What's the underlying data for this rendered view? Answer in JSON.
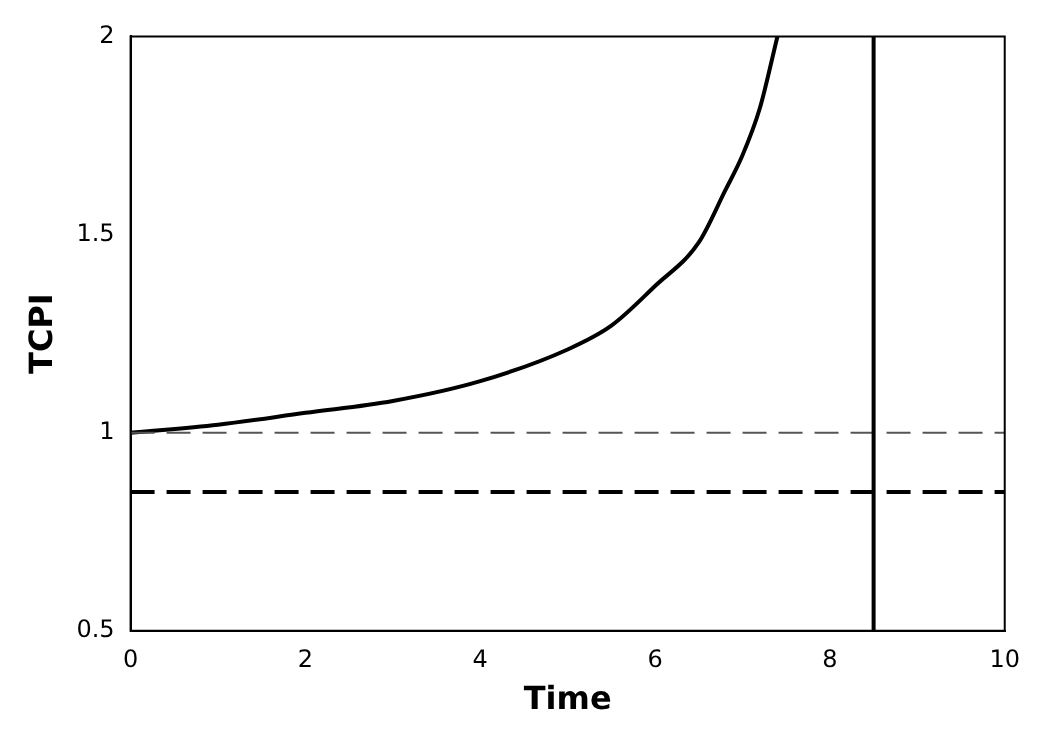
{
  "chart_data": {
    "type": "line",
    "xlabel": "Time",
    "ylabel": "TCPI",
    "x": [
      0,
      1,
      2,
      3,
      4,
      5,
      5.5,
      6,
      6.5,
      6.8,
      7,
      7.2,
      7.4
    ],
    "series": [
      {
        "color": "#000000",
        "values": [
          1.0,
          1.02,
          1.05,
          1.08,
          1.13,
          1.21,
          1.27,
          1.37,
          1.48,
          1.61,
          1.7,
          1.82,
          2.0
        ]
      }
    ],
    "xlim": [
      0,
      10
    ],
    "xticks": [
      0,
      2,
      4,
      6,
      8,
      10
    ],
    "ylim": [
      0.5,
      2
    ],
    "yticks": [
      0.5,
      1,
      1.5,
      2
    ],
    "ref_lines": [
      {
        "axis": "y",
        "value": 1,
        "color": "#555555",
        "line_style": "dashed"
      },
      {
        "axis": "y",
        "value": 0.85,
        "color": "#000000",
        "line_style": "dashed"
      },
      {
        "axis": "x",
        "value": 8.5,
        "color": "#000000",
        "line_style": "solid"
      }
    ],
    "grid": false,
    "legend": false,
    "marker": "none",
    "line_style": "solid"
  }
}
